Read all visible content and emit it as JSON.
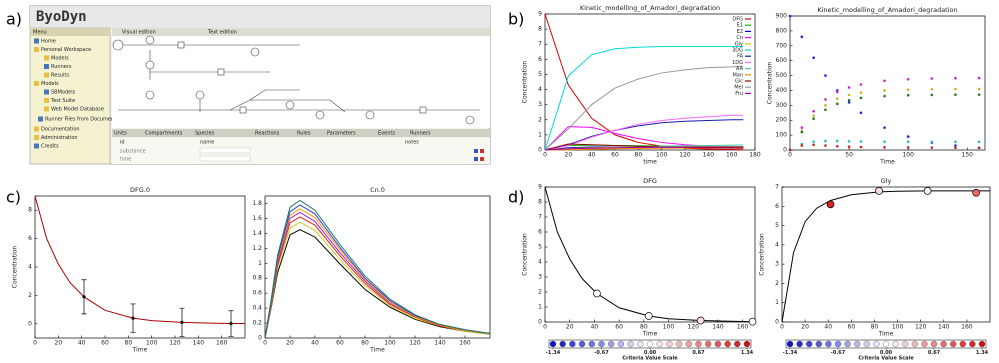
{
  "panel_labels": [
    "a)",
    "b)",
    "c)",
    "d)"
  ],
  "screenshot": {
    "app_title": "ByoDyn",
    "menu_title": "Menu",
    "menu_items": [
      "Home",
      "Personal Workspace",
      "Models",
      "Runners",
      "Results",
      "Models",
      "SBModels",
      "Test Suite",
      "Web Model Database",
      "Runner Files from Documentation",
      "Documentation",
      "Administration",
      "Credits"
    ],
    "top_tabs": [
      "Visual edition",
      "Text edition"
    ],
    "bottom_tabs": [
      "Units",
      "Compartments",
      "Species",
      "Reactions",
      "Rules",
      "Parameters",
      "Events",
      "Runners"
    ],
    "table_headers": [
      "id",
      "name",
      "notes"
    ],
    "table_rows": [
      "substance",
      "time"
    ]
  },
  "chart_data": [
    {
      "type": "line",
      "title": "Kinetic_modelling_of_Amadori_degradation",
      "xlabel": "time",
      "ylabel": "Concentration",
      "xlim": [
        0,
        180
      ],
      "xticks": [
        0,
        20,
        40,
        60,
        80,
        100,
        120,
        140,
        160,
        180
      ],
      "ylim": [
        0,
        9
      ],
      "yticks": [
        0,
        1,
        2,
        3,
        4,
        5,
        6,
        7,
        8,
        9
      ],
      "legend": "upper right",
      "x": [
        0,
        20,
        40,
        60,
        80,
        100,
        120,
        140,
        160,
        170
      ],
      "series": [
        {
          "name": "DFG",
          "color": "#dd0000",
          "values": [
            9,
            4.3,
            2.1,
            1.0,
            0.5,
            0.25,
            0.12,
            0.06,
            0.03,
            0.02
          ]
        },
        {
          "name": "E1",
          "color": "#00bb00",
          "values": [
            0,
            0.3,
            0.32,
            0.3,
            0.28,
            0.26,
            0.25,
            0.24,
            0.23,
            0.23
          ]
        },
        {
          "name": "E2",
          "color": "#0000dd",
          "values": [
            0,
            0.15,
            0.2,
            0.2,
            0.19,
            0.18,
            0.17,
            0.16,
            0.15,
            0.15
          ]
        },
        {
          "name": "Cn",
          "color": "#ff00ff",
          "values": [
            0,
            1.55,
            1.5,
            1.1,
            0.75,
            0.5,
            0.35,
            0.25,
            0.18,
            0.15
          ]
        },
        {
          "name": "Gly",
          "color": "#cccc00",
          "values": [
            0,
            0.1,
            0.15,
            0.18,
            0.2,
            0.21,
            0.22,
            0.22,
            0.22,
            0.22
          ]
        },
        {
          "name": "3DG",
          "color": "#00dddd",
          "values": [
            0,
            4.9,
            6.3,
            6.7,
            6.8,
            6.85,
            6.85,
            6.85,
            6.85,
            6.85
          ]
        },
        {
          "name": "FA",
          "color": "#1a1aaa",
          "values": [
            0,
            0.35,
            0.9,
            1.3,
            1.6,
            1.8,
            1.9,
            1.95,
            2.0,
            2.0
          ]
        },
        {
          "name": "1DG",
          "color": "#ff66ff",
          "values": [
            0,
            0.3,
            0.85,
            1.3,
            1.7,
            1.95,
            2.1,
            2.2,
            2.3,
            2.3
          ]
        },
        {
          "name": "AA",
          "color": "#44ccaa",
          "values": [
            0,
            0.05,
            0.1,
            0.15,
            0.2,
            0.25,
            0.28,
            0.3,
            0.32,
            0.33
          ]
        },
        {
          "name": "Man",
          "color": "#ff8800",
          "values": [
            0,
            0.02,
            0.05,
            0.08,
            0.1,
            0.12,
            0.13,
            0.14,
            0.15,
            0.15
          ]
        },
        {
          "name": "Glc",
          "color": "#880000",
          "values": [
            0,
            0.4,
            0.35,
            0.3,
            0.25,
            0.2,
            0.18,
            0.15,
            0.13,
            0.12
          ]
        },
        {
          "name": "Mel",
          "color": "#999999",
          "values": [
            0,
            1.4,
            3.0,
            4.1,
            4.7,
            5.1,
            5.3,
            5.45,
            5.5,
            5.55
          ]
        },
        {
          "name": "Fru",
          "color": "#aa00aa",
          "values": [
            0,
            0.08,
            0.12,
            0.15,
            0.17,
            0.18,
            0.19,
            0.2,
            0.2,
            0.2
          ]
        }
      ]
    },
    {
      "type": "scatter",
      "title": "Kinetic_modelling_of_Amadori_degradation",
      "xlabel": "Time",
      "ylabel": "Concentration",
      "xlim": [
        0,
        165
      ],
      "xticks": [
        0,
        50,
        100,
        150
      ],
      "ylim": [
        0,
        900
      ],
      "yticks": [
        0,
        100,
        200,
        300,
        400,
        500,
        600,
        700,
        800,
        900
      ],
      "x": [
        0,
        10,
        20,
        30,
        40,
        50,
        60,
        80,
        100,
        120,
        140,
        160
      ],
      "series": [
        {
          "color": "#2222dd",
          "values": [
            900,
            760,
            620,
            500,
            400,
            320,
            250,
            150,
            90,
            50,
            30,
            15
          ]
        },
        {
          "color": "#cc22cc",
          "values": [
            0,
            150,
            260,
            340,
            390,
            420,
            440,
            465,
            475,
            480,
            482,
            483
          ]
        },
        {
          "color": "#bbbb22",
          "values": [
            0,
            130,
            230,
            300,
            345,
            370,
            385,
            400,
            405,
            408,
            410,
            410
          ]
        },
        {
          "color": "#227722",
          "values": [
            0,
            120,
            210,
            270,
            310,
            335,
            350,
            362,
            368,
            370,
            372,
            372
          ]
        },
        {
          "color": "#22bbbb",
          "values": [
            0,
            40,
            55,
            60,
            60,
            58,
            57,
            56,
            55,
            55,
            55,
            55
          ]
        },
        {
          "color": "#cc2222",
          "values": [
            0,
            30,
            35,
            30,
            25,
            22,
            20,
            18,
            17,
            16,
            15,
            15
          ]
        }
      ]
    },
    {
      "type": "line",
      "title": "DFG.0",
      "xlabel": "Time",
      "ylabel": "Concentration",
      "xlim": [
        0,
        180
      ],
      "xticks": [
        0,
        20,
        40,
        60,
        80,
        100,
        120,
        140,
        160
      ],
      "ylim": [
        -1,
        9
      ],
      "yticks": [
        0,
        2,
        4,
        6,
        8
      ],
      "series": [
        {
          "color": "#aa0000",
          "x": [
            0,
            10,
            20,
            30,
            42,
            60,
            84,
            100,
            126,
            150,
            168,
            180
          ],
          "values": [
            9,
            6.0,
            4.2,
            2.9,
            1.9,
            0.95,
            0.4,
            0.22,
            0.1,
            0.05,
            0.02,
            0.02
          ]
        },
        {
          "color": "#000000",
          "style": "errorbar",
          "x": [
            42,
            84,
            126,
            168
          ],
          "values": [
            1.9,
            0.4,
            0.1,
            0.02
          ],
          "errors": [
            1.2,
            1.0,
            1.0,
            0.9
          ]
        }
      ]
    },
    {
      "type": "line",
      "title": "Cn.0",
      "xlabel": "Time",
      "xlim": [
        0,
        180
      ],
      "xticks": [
        0,
        20,
        40,
        60,
        80,
        100,
        120,
        140,
        160
      ],
      "ylim": [
        0,
        1.9
      ],
      "yticks": [
        0,
        0.2,
        0.4,
        0.6,
        0.8,
        1,
        1.2,
        1.4,
        1.6,
        1.8
      ],
      "x": [
        0,
        5,
        10,
        20,
        28,
        40,
        60,
        80,
        100,
        120,
        140,
        160,
        180
      ],
      "series": [
        {
          "color": "#000000",
          "values": [
            0,
            0.41,
            0.87,
            1.38,
            1.45,
            1.35,
            0.99,
            0.65,
            0.41,
            0.25,
            0.15,
            0.09,
            0.05
          ]
        },
        {
          "color": "#cccc22",
          "values": [
            0,
            0.43,
            0.93,
            1.47,
            1.55,
            1.44,
            1.05,
            0.7,
            0.43,
            0.26,
            0.16,
            0.09,
            0.05
          ]
        },
        {
          "color": "#dd2222",
          "values": [
            0,
            0.45,
            0.97,
            1.54,
            1.62,
            1.51,
            1.1,
            0.73,
            0.45,
            0.28,
            0.16,
            0.1,
            0.06
          ]
        },
        {
          "color": "#aa22cc",
          "values": [
            0,
            0.47,
            1.01,
            1.6,
            1.68,
            1.56,
            1.14,
            0.76,
            0.47,
            0.29,
            0.17,
            0.1,
            0.06
          ]
        },
        {
          "color": "#ff9900",
          "values": [
            0,
            0.48,
            1.04,
            1.64,
            1.73,
            1.61,
            1.18,
            0.78,
            0.48,
            0.29,
            0.17,
            0.1,
            0.06
          ]
        },
        {
          "color": "#2244dd",
          "values": [
            0,
            0.5,
            1.07,
            1.69,
            1.78,
            1.66,
            1.21,
            0.8,
            0.5,
            0.3,
            0.18,
            0.11,
            0.06
          ]
        },
        {
          "color": "#227766",
          "values": [
            0,
            0.52,
            1.1,
            1.75,
            1.84,
            1.71,
            1.25,
            0.83,
            0.52,
            0.31,
            0.18,
            0.11,
            0.06
          ]
        }
      ]
    },
    {
      "type": "line",
      "title": "DFG",
      "xlabel": "Time",
      "ylabel": "Concentration",
      "xlim": [
        0,
        170
      ],
      "xticks": [
        0,
        20,
        40,
        60,
        80,
        100,
        120,
        140,
        160
      ],
      "ylim": [
        0,
        9
      ],
      "yticks": [
        0,
        1,
        2,
        3,
        4,
        5,
        6,
        7,
        8,
        9
      ],
      "series": [
        {
          "color": "#000000",
          "x": [
            0,
            10,
            20,
            30,
            42,
            60,
            84,
            100,
            126,
            150,
            170
          ],
          "values": [
            9,
            6.0,
            4.2,
            2.9,
            1.9,
            0.95,
            0.4,
            0.22,
            0.1,
            0.05,
            0.02
          ]
        },
        {
          "style": "markers",
          "x": [
            42,
            84,
            126,
            168
          ],
          "values": [
            1.9,
            0.4,
            0.1,
            0.02
          ],
          "colors": [
            "#ffffff",
            "#ffffff",
            "#ffdddd",
            "#ffffff"
          ]
        }
      ],
      "colorbar": {
        "label": "Criteria Value Scale",
        "lim": [
          -1.34,
          1.34
        ],
        "ticks": [
          -1.34,
          -0.67,
          {
            "value": 0,
            "label": "0.00"
          },
          0.67,
          1.34
        ],
        "colors": [
          "#1111cc",
          "#ffffff",
          "#cc1111"
        ]
      }
    },
    {
      "type": "line",
      "title": "Gly",
      "xlabel": "Time",
      "ylabel": "Concentration",
      "xlim": [
        0,
        180
      ],
      "xticks": [
        0,
        20,
        40,
        60,
        80,
        100,
        120,
        140,
        160
      ],
      "ylim": [
        0,
        7
      ],
      "yticks": [
        0,
        1,
        2,
        3,
        4,
        5,
        6,
        7
      ],
      "series": [
        {
          "color": "#000000",
          "x": [
            0,
            10,
            20,
            30,
            42,
            60,
            84,
            100,
            126,
            150,
            180
          ],
          "values": [
            0,
            3.6,
            5.2,
            5.9,
            6.3,
            6.6,
            6.75,
            6.78,
            6.8,
            6.8,
            6.8
          ]
        },
        {
          "style": "markers",
          "x": [
            42,
            84,
            126,
            168
          ],
          "values": [
            6.1,
            6.8,
            6.8,
            6.7
          ],
          "colors": [
            "#dd2222",
            "#ffdddd",
            "#ffeeee",
            "#ee6666"
          ]
        }
      ],
      "colorbar": {
        "label": "Criteria Value Scale",
        "lim": [
          -1.34,
          1.34
        ],
        "ticks": [
          -1.34,
          -0.67,
          {
            "value": 0,
            "label": "0.00"
          },
          0.67,
          1.34
        ],
        "colors": [
          "#1111cc",
          "#ffffff",
          "#cc1111"
        ]
      }
    }
  ]
}
